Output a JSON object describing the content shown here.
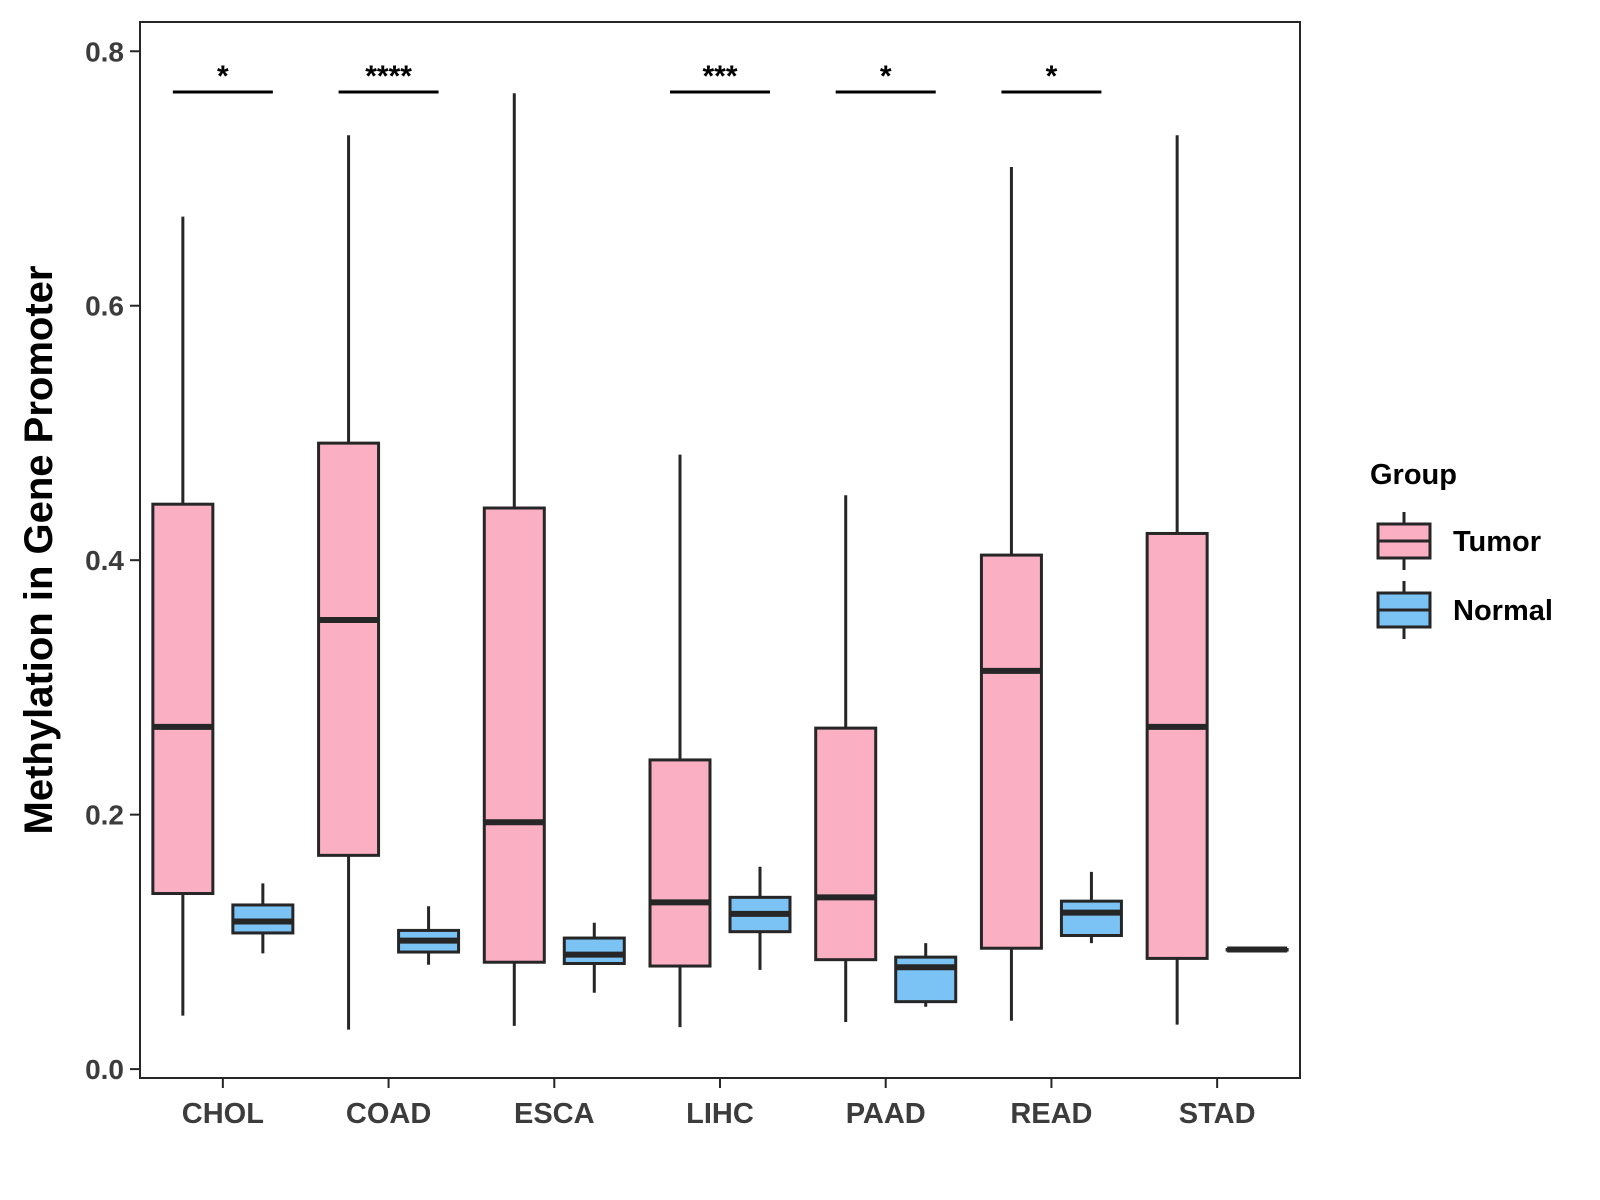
{
  "chart_data": {
    "type": "box",
    "title": "",
    "xlabel": "",
    "ylabel": "Methylation in Gene Promoter",
    "ylim": [
      -0.007,
      0.823
    ],
    "yticks": [
      "0.0",
      "0.2",
      "0.4",
      "0.6",
      "0.8"
    ],
    "grid": false,
    "categories": [
      "CHOL",
      "COAD",
      "ESCA",
      "LIHC",
      "PAAD",
      "READ",
      "STAD"
    ],
    "legend": {
      "title": "Group",
      "position": "right",
      "entries": [
        {
          "name": "Tumor",
          "color": "#FBAFC2"
        },
        {
          "name": "Normal",
          "color": "#7CC3F5"
        }
      ]
    },
    "series": [
      {
        "name": "Tumor",
        "color": "#FBAFC2",
        "boxes": [
          {
            "category": "CHOL",
            "min": 0.042,
            "q1": 0.138,
            "median": 0.269,
            "q3": 0.444,
            "max": 0.67
          },
          {
            "category": "COAD",
            "min": 0.031,
            "q1": 0.168,
            "median": 0.353,
            "q3": 0.492,
            "max": 0.734
          },
          {
            "category": "ESCA",
            "min": 0.034,
            "q1": 0.084,
            "median": 0.194,
            "q3": 0.441,
            "max": 0.767
          },
          {
            "category": "LIHC",
            "min": 0.033,
            "q1": 0.081,
            "median": 0.131,
            "q3": 0.243,
            "max": 0.483
          },
          {
            "category": "PAAD",
            "min": 0.037,
            "q1": 0.086,
            "median": 0.135,
            "q3": 0.268,
            "max": 0.451
          },
          {
            "category": "READ",
            "min": 0.038,
            "q1": 0.095,
            "median": 0.313,
            "q3": 0.404,
            "max": 0.709
          },
          {
            "category": "STAD",
            "min": 0.035,
            "q1": 0.087,
            "median": 0.269,
            "q3": 0.421,
            "max": 0.734
          }
        ]
      },
      {
        "name": "Normal",
        "color": "#7CC3F5",
        "boxes": [
          {
            "category": "CHOL",
            "min": 0.091,
            "q1": 0.107,
            "median": 0.116,
            "q3": 0.129,
            "max": 0.146
          },
          {
            "category": "COAD",
            "min": 0.082,
            "q1": 0.092,
            "median": 0.101,
            "q3": 0.109,
            "max": 0.128
          },
          {
            "category": "ESCA",
            "min": 0.06,
            "q1": 0.083,
            "median": 0.09,
            "q3": 0.103,
            "max": 0.115
          },
          {
            "category": "LIHC",
            "min": 0.078,
            "q1": 0.108,
            "median": 0.122,
            "q3": 0.135,
            "max": 0.159
          },
          {
            "category": "PAAD",
            "min": 0.049,
            "q1": 0.053,
            "median": 0.08,
            "q3": 0.088,
            "max": 0.099
          },
          {
            "category": "READ",
            "min": 0.099,
            "q1": 0.105,
            "median": 0.123,
            "q3": 0.132,
            "max": 0.155
          },
          {
            "category": "STAD",
            "min": 0.094,
            "q1": 0.094,
            "median": 0.094,
            "q3": 0.094,
            "max": 0.094
          }
        ]
      }
    ],
    "significance": [
      {
        "category": "CHOL",
        "label": "*",
        "y": 0.768
      },
      {
        "category": "COAD",
        "label": "****",
        "y": 0.768
      },
      {
        "category": "LIHC",
        "label": "***",
        "y": 0.768
      },
      {
        "category": "PAAD",
        "label": "*",
        "y": 0.768
      },
      {
        "category": "READ",
        "label": "*",
        "y": 0.768
      }
    ]
  }
}
